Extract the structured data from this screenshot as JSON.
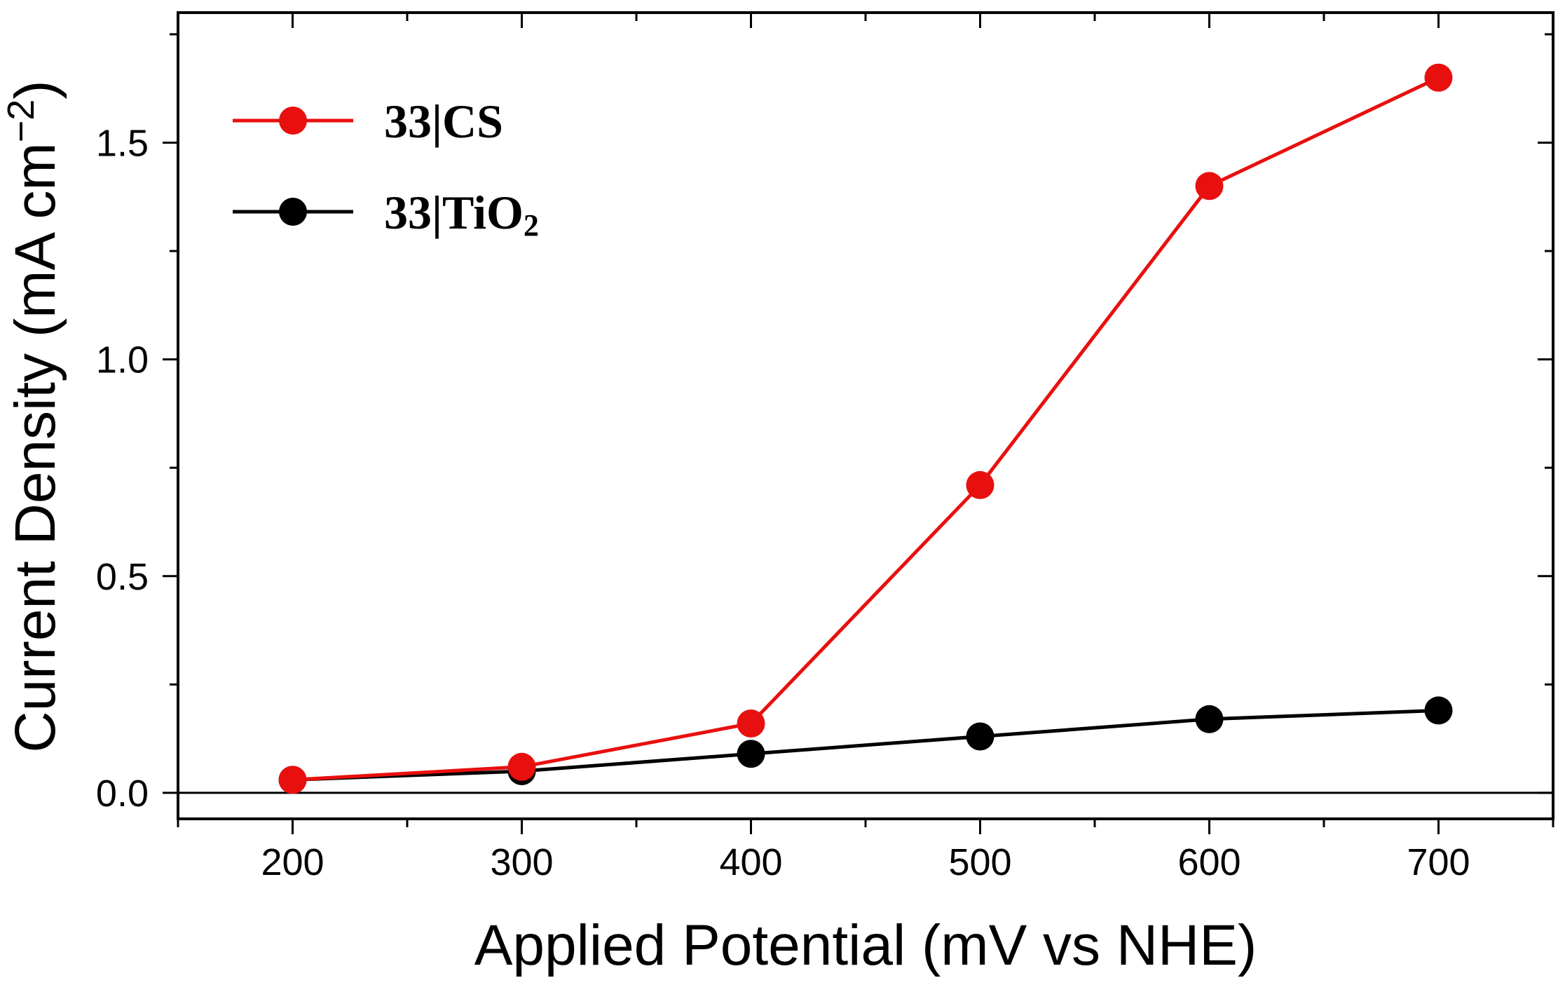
{
  "chart_data": {
    "type": "line",
    "xlabel": "Applied Potential (mV vs NHE)",
    "ylabel": "Current Density (mA cm",
    "ylabel_sup": "−2",
    "ylabel_close": ")",
    "xlim": [
      150,
      750
    ],
    "ylim": [
      -0.06,
      1.8
    ],
    "x_ticks": [
      200,
      300,
      400,
      500,
      600,
      700
    ],
    "x_tick_labels": [
      "200",
      "300",
      "400",
      "500",
      "600",
      "700"
    ],
    "y_ticks": [
      0.0,
      0.5,
      1.0,
      1.5
    ],
    "y_tick_labels": [
      "0.0",
      "0.5",
      "1.0",
      "1.5"
    ],
    "zero_line": true,
    "grid": false,
    "legend_position": "top-left",
    "series": [
      {
        "name": "33|CS",
        "name_main": "33|CS",
        "name_sub": "",
        "color": "#e8100f",
        "x": [
          200,
          300,
          400,
          500,
          600,
          700
        ],
        "y": [
          0.03,
          0.06,
          0.16,
          0.71,
          1.4,
          1.65
        ]
      },
      {
        "name": "33|TiO2",
        "name_main": "33|TiO",
        "name_sub": "2",
        "color": "#000000",
        "x": [
          200,
          300,
          400,
          500,
          600,
          700
        ],
        "y": [
          0.03,
          0.05,
          0.09,
          0.13,
          0.17,
          0.19
        ]
      }
    ]
  }
}
